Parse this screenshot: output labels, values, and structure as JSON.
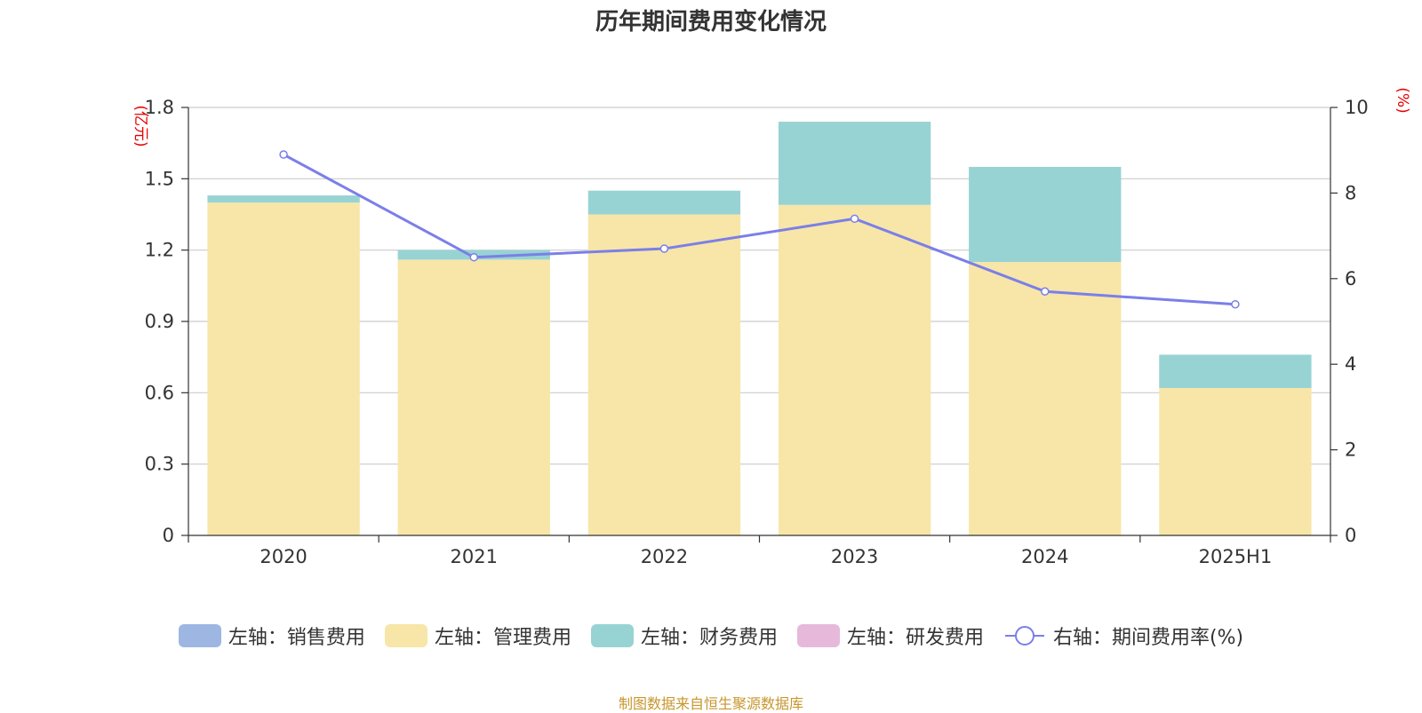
{
  "chart_data": {
    "type": "bar",
    "title": "历年期间费用变化情况",
    "categories": [
      "2020",
      "2021",
      "2022",
      "2023",
      "2024",
      "2025H1"
    ],
    "left_axis": {
      "unit": "(亿元)",
      "ylim": [
        0,
        1.8
      ],
      "ticks": [
        "0",
        "0.3",
        "0.6",
        "0.9",
        "1.2",
        "1.5",
        "1.8"
      ]
    },
    "right_axis": {
      "unit": "(%)",
      "ylim": [
        0,
        10
      ],
      "ticks": [
        "0",
        "2",
        "4",
        "6",
        "8",
        "10"
      ]
    },
    "stacked": true,
    "series": [
      {
        "name": "左轴：销售费用",
        "type": "bar",
        "axis": "left",
        "color": "#9db6e2",
        "values": [
          0,
          0,
          0,
          0,
          0,
          0
        ]
      },
      {
        "name": "左轴：管理费用",
        "type": "bar",
        "axis": "left",
        "color": "#f7e6a8",
        "values": [
          1.4,
          1.16,
          1.35,
          1.39,
          1.15,
          0.62
        ]
      },
      {
        "name": "左轴：财务费用",
        "type": "bar",
        "axis": "left",
        "color": "#98d3d4",
        "values": [
          0.03,
          0.04,
          0.1,
          0.35,
          0.4,
          0.14
        ]
      },
      {
        "name": "左轴：研发费用",
        "type": "bar",
        "axis": "left",
        "color": "#e6b9da",
        "values": [
          0,
          0,
          0,
          0,
          0,
          0
        ]
      },
      {
        "name": "右轴：期间费用率(%)",
        "type": "line",
        "axis": "right",
        "color": "#7b7fe8",
        "values": [
          8.9,
          6.5,
          6.7,
          7.4,
          5.7,
          5.4
        ]
      }
    ],
    "grid": true,
    "legend_position": "bottom"
  },
  "footer": {
    "source": "制图数据来自恒生聚源数据库"
  }
}
